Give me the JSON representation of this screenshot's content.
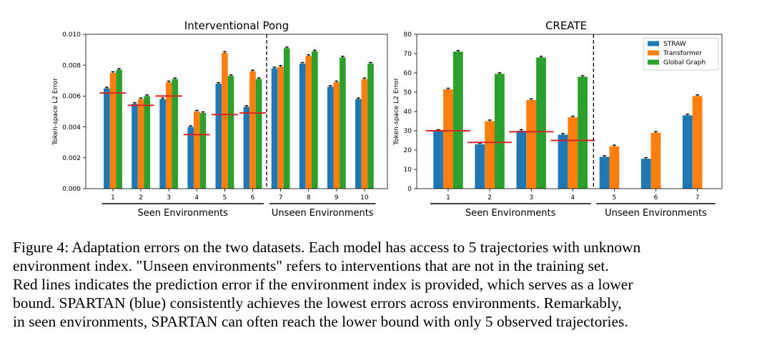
{
  "chart_data": [
    {
      "type": "bar",
      "title": "Interventional Pong",
      "ylabel": "Token-space L2 Error",
      "ylim": [
        0,
        0.01
      ],
      "yticks": [
        "0.000",
        "0.002",
        "0.004",
        "0.006",
        "0.008",
        "0.010"
      ],
      "categories": [
        "1",
        "2",
        "3",
        "4",
        "5",
        "6",
        "7",
        "8",
        "9",
        "10"
      ],
      "series": [
        {
          "name": "STRAW",
          "color": "#1f77b4",
          "values": [
            0.0065,
            0.0055,
            0.0058,
            0.004,
            0.0068,
            0.0053,
            0.0078,
            0.0081,
            0.0066,
            0.0058
          ]
        },
        {
          "name": "Transformer",
          "color": "#ff7f0e",
          "values": [
            0.0075,
            0.0058,
            0.0069,
            0.005,
            0.0088,
            0.0076,
            0.0079,
            0.0086,
            0.0069,
            0.0071
          ]
        },
        {
          "name": "Global Graph",
          "color": "#2ca02c",
          "values": [
            0.0077,
            0.006,
            0.0071,
            0.0049,
            0.0073,
            0.0071,
            0.0091,
            0.0089,
            0.0085,
            0.0081
          ]
        }
      ],
      "lower_bound": [
        0.0062,
        0.0054,
        0.006,
        0.0035,
        0.0048,
        0.0049,
        null,
        null,
        null,
        null
      ],
      "lower_bound_color": "#d62728",
      "divider_after": 6,
      "groups": [
        {
          "label": "Seen Environments",
          "from": 1,
          "to": 6
        },
        {
          "label": "Unseen Environments",
          "from": 7,
          "to": 10
        }
      ],
      "legend": false,
      "grid": false
    },
    {
      "type": "bar",
      "title": "CREATE",
      "ylabel": "Token-space L2 Error",
      "ylim": [
        0,
        80
      ],
      "yticks": [
        "0",
        "10",
        "20",
        "30",
        "40",
        "50",
        "60",
        "70",
        "80"
      ],
      "categories": [
        "1",
        "2",
        "3",
        "4",
        "5",
        "6",
        "7"
      ],
      "series": [
        {
          "name": "STRAW",
          "color": "#1f77b4",
          "values": [
            30,
            23,
            30,
            28,
            16.5,
            15.5,
            38
          ]
        },
        {
          "name": "Transformer",
          "color": "#ff7f0e",
          "values": [
            51.5,
            35,
            46,
            37,
            22,
            29,
            48
          ]
        },
        {
          "name": "Global Graph",
          "color": "#2ca02c",
          "values": [
            71,
            59.5,
            68,
            58,
            null,
            null,
            null
          ]
        }
      ],
      "lower_bound": [
        30,
        24,
        29.5,
        25,
        null,
        null,
        null
      ],
      "lower_bound_color": "#d62728",
      "divider_after": 4,
      "groups": [
        {
          "label": "Seen Environments",
          "from": 1,
          "to": 4
        },
        {
          "label": "Unseen Environments",
          "from": 5,
          "to": 7
        }
      ],
      "legend": true,
      "legend_position": "top-right",
      "grid": false
    }
  ],
  "caption": {
    "lines": [
      "Figure 4: Adaptation errors on the two datasets. Each model has access to 5 trajectories with unknown",
      "environment index. \"Unseen environments\" refers to interventions that are not in the training set.",
      "Red lines indicates the prediction error if the environment index is provided, which serves as a lower",
      "bound. SPARTAN (blue) consistently achieves the lowest errors across environments. Remarkably,",
      "in seen environments, SPARTAN can often reach the lower bound with only 5 observed trajectories."
    ]
  }
}
